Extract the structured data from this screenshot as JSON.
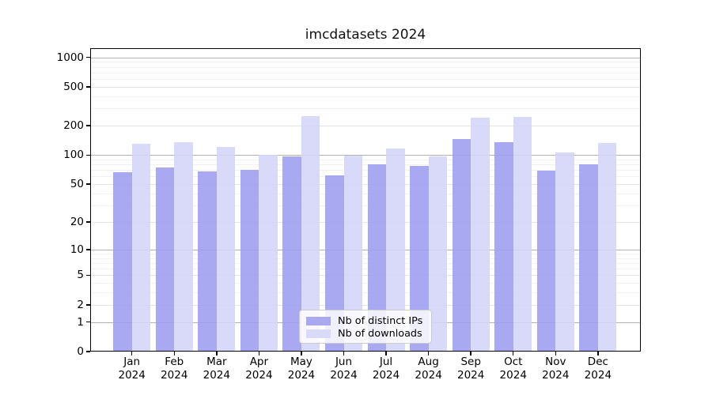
{
  "title": "imcdatasets 2024",
  "legend": {
    "items": [
      {
        "label": "Nb of distinct IPs",
        "color": "#a9a9f1"
      },
      {
        "label": "Nb of downloads",
        "color": "#d9d9f9"
      }
    ]
  },
  "chart_data": {
    "type": "bar",
    "title": "imcdatasets 2024",
    "categories": [
      "Jan 2024",
      "Feb 2024",
      "Mar 2024",
      "Apr 2024",
      "May 2024",
      "Jun 2024",
      "Jul 2024",
      "Aug 2024",
      "Sep 2024",
      "Oct 2024",
      "Nov 2024",
      "Dec 2024"
    ],
    "series": [
      {
        "name": "Nb of distinct IPs",
        "color": "#a9a9f1",
        "values": [
          66,
          75,
          68,
          70,
          97,
          62,
          80,
          77,
          145,
          135,
          69,
          81
        ]
      },
      {
        "name": "Nb of downloads",
        "color": "#d9d9f9",
        "values": [
          130,
          135,
          122,
          100,
          250,
          99,
          116,
          96,
          240,
          245,
          106,
          134
        ]
      }
    ],
    "xlabel": "",
    "ylabel": "",
    "yscale": "log1p",
    "yticks": [
      0,
      1,
      2,
      5,
      10,
      20,
      50,
      100,
      200,
      500,
      1000
    ],
    "ylim": [
      0,
      1230
    ],
    "grid": true,
    "legend_position": "lower center"
  }
}
